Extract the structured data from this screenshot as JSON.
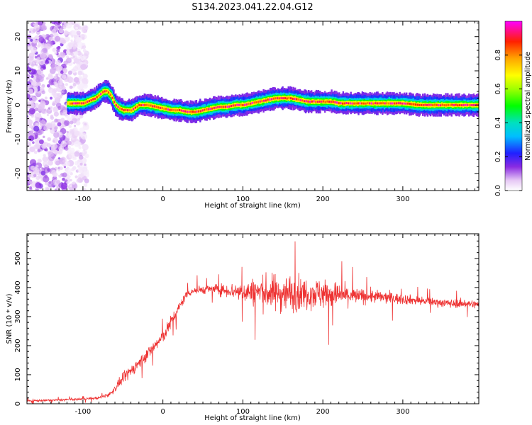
{
  "figure": {
    "title": "S134.2023.041.22.04.G12"
  },
  "chart_data": [
    {
      "type": "heatmap",
      "xlabel": "Height of straight line (km)",
      "ylabel": "Frequency (Hz)",
      "xlim": [
        -170,
        395
      ],
      "ylim": [
        -25,
        24.5
      ],
      "x_ticks": [
        -100,
        0,
        100,
        200,
        300
      ],
      "y_ticks": [
        -20,
        -10,
        0,
        10,
        20
      ],
      "colorbar": {
        "label": "Normalized spectral amplitude",
        "range": [
          0,
          1
        ],
        "ticks": [
          0.0,
          0.2,
          0.4,
          0.6,
          0.8
        ],
        "tick_labels": [
          "0.0",
          "0.2",
          "0.4",
          "0.6",
          "0.8"
        ],
        "colormap": "gist_ncar-like (white-purple-blue-cyan-green-yellow-orange-red-magenta)"
      },
      "ridge": {
        "x": [
          -120,
          -100,
          -85,
          -75,
          -70,
          -65,
          -60,
          -55,
          -50,
          -40,
          -30,
          -20,
          -10,
          0,
          10,
          20,
          30,
          40,
          50,
          60,
          70,
          80,
          90,
          100,
          110,
          120,
          130,
          140,
          150,
          160,
          170,
          180,
          190,
          200,
          210,
          220,
          240,
          260,
          280,
          300,
          320,
          340,
          360,
          380,
          395
        ],
        "frequency_hz": [
          0.5,
          0.5,
          2,
          4,
          4,
          2.5,
          0,
          -1,
          -1.5,
          -1.5,
          0,
          0,
          -0.5,
          -1,
          -1.5,
          -1.5,
          -2,
          -2,
          -1.5,
          -1,
          -0.5,
          -0.5,
          0,
          0,
          0.5,
          1,
          1.5,
          2,
          2,
          2,
          1.5,
          1,
          1,
          1,
          1,
          0.5,
          0.5,
          0.5,
          0.5,
          0.5,
          0,
          0,
          0,
          0,
          0
        ],
        "peak_amplitude": 1.0
      },
      "noise_region_x": [
        -170,
        -105
      ]
    },
    {
      "type": "line",
      "xlabel": "Height of straight line (km)",
      "ylabel": "SNR (10 * v/v)",
      "xlim": [
        -170,
        395
      ],
      "ylim": [
        0,
        585
      ],
      "x_ticks": [
        -100,
        0,
        100,
        200,
        300
      ],
      "y_ticks": [
        0,
        100,
        200,
        300,
        400,
        500
      ],
      "series": [
        {
          "color": "#ee3333",
          "x": [
            -170,
            -140,
            -110,
            -80,
            -65,
            -55,
            -45,
            -30,
            -20,
            -10,
            0,
            10,
            20,
            30,
            40,
            60,
            80,
            100,
            120,
            140,
            160,
            180,
            200,
            220,
            240,
            260,
            280,
            300,
            320,
            340,
            360,
            380,
            395
          ],
          "envelope_mean": [
            10,
            12,
            15,
            20,
            35,
            70,
            100,
            140,
            170,
            200,
            230,
            280,
            330,
            380,
            390,
            395,
            390,
            385,
            385,
            380,
            380,
            380,
            380,
            375,
            370,
            370,
            365,
            360,
            355,
            350,
            345,
            345,
            340
          ],
          "envelope_spread": [
            6,
            6,
            6,
            8,
            15,
            25,
            35,
            35,
            35,
            40,
            40,
            40,
            30,
            25,
            25,
            25,
            40,
            60,
            90,
            110,
            110,
            90,
            90,
            70,
            50,
            40,
            35,
            30,
            25,
            25,
            25,
            25,
            25
          ]
        }
      ]
    }
  ]
}
